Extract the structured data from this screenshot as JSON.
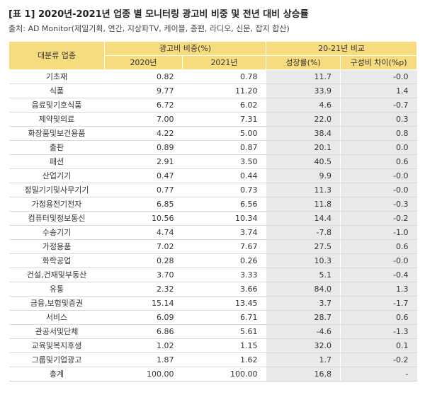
{
  "title": "[표 1] 2020년-2021년 업종 별 모니터링 광고비 비중 및 전년 대비 상승률",
  "source": "출처: AD Monitor(제일기획, 연간, 지상파TV, 케이블, 종편, 라디오, 신문, 잡지 합산)",
  "header": {
    "category": "대분류 업종",
    "share_group": "광고비 비중(%)",
    "compare_group": "20-21년 비교",
    "y2020": "2020년",
    "y2021": "2021년",
    "growth": "성장률(%)",
    "share_diff": "구성비 차이(%p)"
  },
  "rows": [
    {
      "category": "기초재",
      "y2020": "0.82",
      "y2021": "0.78",
      "growth": "11.7",
      "diff": "-0.0"
    },
    {
      "category": "식품",
      "y2020": "9.77",
      "y2021": "11.20",
      "growth": "33.9",
      "diff": "1.4"
    },
    {
      "category": "음료및기호식품",
      "y2020": "6.72",
      "y2021": "6.02",
      "growth": "4.6",
      "diff": "-0.7"
    },
    {
      "category": "제약및의료",
      "y2020": "7.00",
      "y2021": "7.31",
      "growth": "22.0",
      "diff": "0.3"
    },
    {
      "category": "화장품및보건용품",
      "y2020": "4.22",
      "y2021": "5.00",
      "growth": "38.4",
      "diff": "0.8"
    },
    {
      "category": "출판",
      "y2020": "0.89",
      "y2021": "0.87",
      "growth": "20.1",
      "diff": "0.0"
    },
    {
      "category": "패션",
      "y2020": "2.91",
      "y2021": "3.50",
      "growth": "40.5",
      "diff": "0.6"
    },
    {
      "category": "산업기기",
      "y2020": "0.47",
      "y2021": "0.44",
      "growth": "9.9",
      "diff": "-0.0"
    },
    {
      "category": "정밀기기및사무기기",
      "y2020": "0.77",
      "y2021": "0.73",
      "growth": "11.3",
      "diff": "-0.0"
    },
    {
      "category": "가정용전기전자",
      "y2020": "6.85",
      "y2021": "6.56",
      "growth": "11.8",
      "diff": "-0.3"
    },
    {
      "category": "컴퓨터및정보통신",
      "y2020": "10.56",
      "y2021": "10.34",
      "growth": "14.4",
      "diff": "-0.2"
    },
    {
      "category": "수송기기",
      "y2020": "4.74",
      "y2021": "3.74",
      "growth": "-7.8",
      "diff": "-1.0"
    },
    {
      "category": "가정용품",
      "y2020": "7.02",
      "y2021": "7.67",
      "growth": "27.5",
      "diff": "0.6"
    },
    {
      "category": "화학공업",
      "y2020": "0.28",
      "y2021": "0.26",
      "growth": "10.3",
      "diff": "-0.0"
    },
    {
      "category": "건설,건재및부동산",
      "y2020": "3.70",
      "y2021": "3.33",
      "growth": "5.1",
      "diff": "-0.4"
    },
    {
      "category": "유통",
      "y2020": "2.32",
      "y2021": "3.66",
      "growth": "84.0",
      "diff": "1.3"
    },
    {
      "category": "금융,보험및증권",
      "y2020": "15.14",
      "y2021": "13.45",
      "growth": "3.7",
      "diff": "-1.7"
    },
    {
      "category": "서비스",
      "y2020": "6.09",
      "y2021": "6.71",
      "growth": "28.7",
      "diff": "0.6"
    },
    {
      "category": "관공서및단체",
      "y2020": "6.86",
      "y2021": "5.61",
      "growth": "-4.6",
      "diff": "-1.3"
    },
    {
      "category": "교육및복지후생",
      "y2020": "1.02",
      "y2021": "1.15",
      "growth": "32.0",
      "diff": "0.1"
    },
    {
      "category": "그룹및기업광고",
      "y2020": "1.87",
      "y2021": "1.62",
      "growth": "1.7",
      "diff": "-0.2"
    },
    {
      "category": "총계",
      "y2020": "100.00",
      "y2021": "100.00",
      "growth": "16.8",
      "diff": "-"
    }
  ],
  "colors": {
    "header_bg": "#f7dc7f",
    "shade_bg": "#e9e9e9"
  }
}
